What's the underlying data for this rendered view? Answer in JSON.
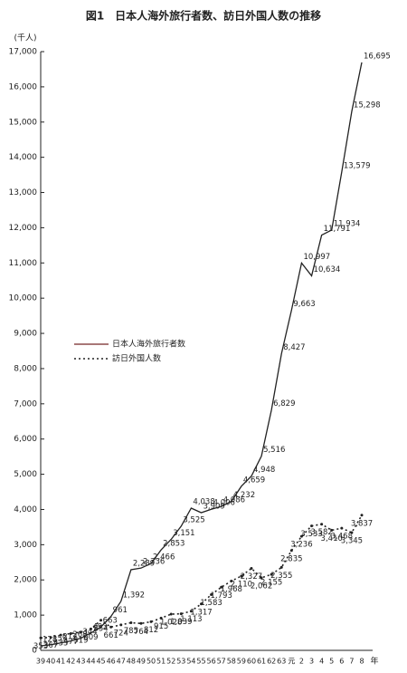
{
  "chart_data": {
    "type": "line",
    "title": "図1　日本人海外旅行者数、訪日外国人数の推移",
    "y_unit": "(千人)",
    "x_unit": "年",
    "categories": [
      "39",
      "40",
      "41",
      "42",
      "43",
      "44",
      "45",
      "46",
      "47",
      "48",
      "49",
      "50",
      "51",
      "52",
      "53",
      "54",
      "55",
      "56",
      "57",
      "58",
      "59",
      "60",
      "61",
      "62",
      "63",
      "元",
      "2",
      "3",
      "4",
      "5",
      "6",
      "7",
      "8"
    ],
    "ylim": [
      0,
      17000
    ],
    "yticks": [
      0,
      {
        "value": 1000,
        "label": "1,000"
      },
      {
        "value": 2000,
        "label": "2,000"
      },
      {
        "value": 3000,
        "label": "3,000"
      },
      {
        "value": 4000,
        "label": "4,000"
      },
      {
        "value": 5000,
        "label": "5,000"
      },
      {
        "value": 6000,
        "label": "6,000"
      },
      {
        "value": 7000,
        "label": "7,000"
      },
      {
        "value": 8000,
        "label": "8,000"
      },
      {
        "value": 9000,
        "label": "9,000"
      },
      {
        "value": 10000,
        "label": "10,000"
      },
      {
        "value": 11000,
        "label": "11,000"
      },
      {
        "value": 12000,
        "label": "12,000"
      },
      {
        "value": 13000,
        "label": "13,000"
      },
      {
        "value": 14000,
        "label": "14,000"
      },
      {
        "value": 15000,
        "label": "15,000"
      },
      {
        "value": 16000,
        "label": "16,000"
      },
      {
        "value": 17000,
        "label": "17,000"
      }
    ],
    "series": [
      {
        "name": "日本人海外旅行者数",
        "color": "#222222",
        "line_style": "solid",
        "values": [
          128,
          159,
          212,
          268,
          344,
          493,
          663,
          961,
          1392,
          2289,
          2336,
          2466,
          2853,
          3151,
          3525,
          4038,
          3909,
          4006,
          4086,
          4232,
          4659,
          4948,
          5516,
          6829,
          8427,
          9663,
          10997,
          10634,
          11791,
          11934,
          13579,
          15298,
          16695
        ],
        "value_labels": [
          "128",
          "159",
          "212",
          "268",
          "344",
          "493",
          "663",
          "961",
          "1,392",
          "2,289",
          "2,336",
          "2,466",
          "2,853",
          "3,151",
          "3,525",
          "4,038",
          "3,909",
          "4,006",
          "4,086",
          "4,232",
          "4,659",
          "4,948",
          "5,516",
          "6,829",
          "8,427",
          "9,663",
          "10,997",
          "10,634",
          "11,791",
          "11,934",
          "13,579",
          "15,298",
          "16,695"
        ]
      },
      {
        "name": "訪日外国人数",
        "color": "#222222",
        "line_style": "dotted",
        "values": [
          353,
          367,
          433,
          477,
          519,
          609,
          854,
          661,
          724,
          785,
          764,
          812,
          915,
          1028,
          1039,
          1113,
          1317,
          1583,
          1793,
          1968,
          2110,
          2327,
          2062,
          2155,
          2355,
          2835,
          3236,
          3533,
          3582,
          3410,
          3468,
          3345,
          3837
        ],
        "value_labels": [
          "353",
          "367",
          "433",
          "477",
          "519",
          "609",
          "854",
          "661",
          "724",
          "785",
          "764",
          "812",
          "915",
          "1,028",
          "1,039",
          "1,113",
          "1,317",
          "1,583",
          "1,793",
          "1,968",
          "2,110",
          "2,327",
          "2,062",
          "2,155",
          "2,355",
          "2,835",
          "3,236",
          "3,533",
          "3,582",
          "3,410",
          "3,468",
          "3,345",
          "3,837"
        ]
      }
    ],
    "legend": "left"
  }
}
